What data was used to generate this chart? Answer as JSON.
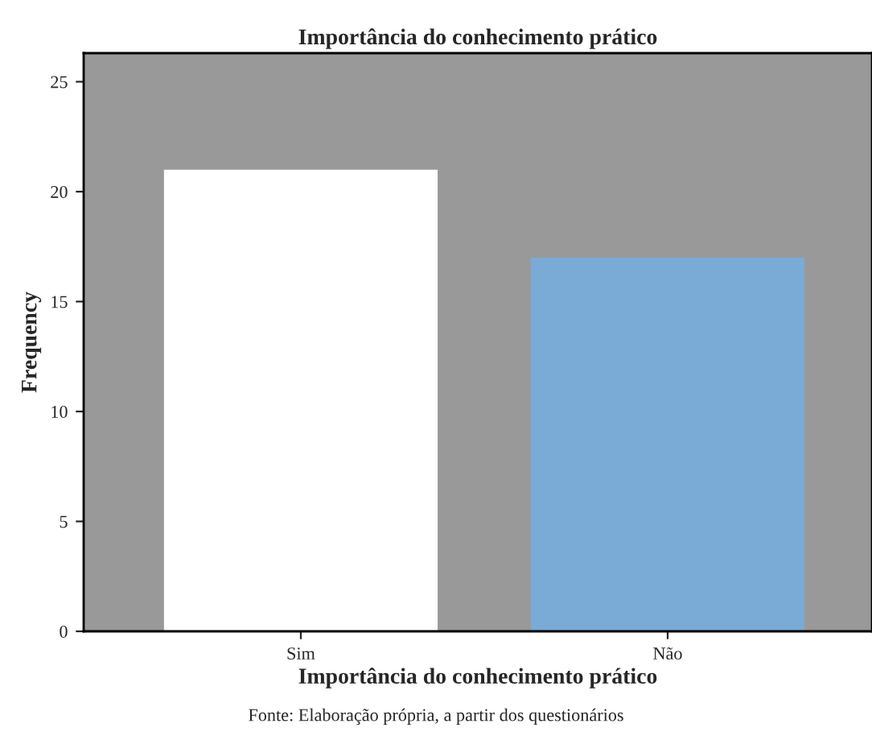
{
  "chart_data": {
    "type": "bar",
    "title": "Importância do conhecimento prático",
    "xlabel": "Importância do conhecimento prático",
    "ylabel": "Frequency",
    "categories": [
      "Sim",
      "Não"
    ],
    "values": [
      21,
      17
    ],
    "colors": [
      "#ffffff",
      "#7aaad6"
    ],
    "ylim": [
      0,
      26.3
    ],
    "yticks": [
      0,
      5,
      10,
      15,
      20,
      25
    ],
    "grid": false,
    "annotations": [
      "Fonte: Elaboração própria, a partir dos questionários"
    ]
  }
}
